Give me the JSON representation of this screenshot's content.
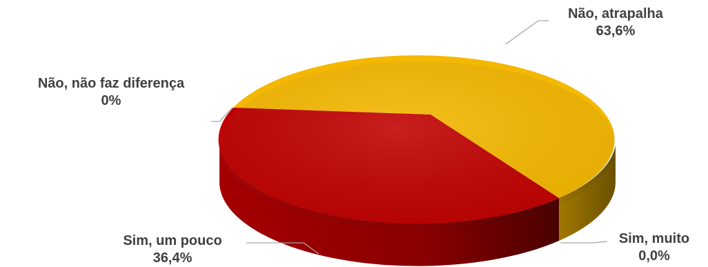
{
  "colors": {
    "nao_atrapalha": "#f5b800",
    "sim_um_pouco": "#c00000",
    "label_text": "#404040",
    "leader_line": "#a6a6a6"
  },
  "chart_data": {
    "type": "pie",
    "title": "",
    "slices": [
      {
        "label": "Não, atrapalha",
        "value": 63.6,
        "value_label": "63,6%"
      },
      {
        "label": "Sim, muito",
        "value": 0.0,
        "value_label": "0,0%"
      },
      {
        "label": "Sim, um pouco",
        "value": 36.4,
        "value_label": "36,4%"
      },
      {
        "label": "Não, não faz diferença",
        "value": 0,
        "value_label": "0%"
      }
    ],
    "legend": "none",
    "style": "3d"
  }
}
